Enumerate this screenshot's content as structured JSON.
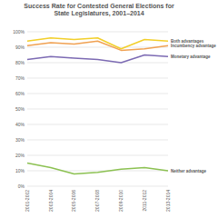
{
  "chart_data": {
    "type": "line",
    "title": "Success Rate for Contested General Elections for State Legislatures, 2001–2014",
    "categories": [
      "2001-2002",
      "2003-2004",
      "2005-2006",
      "2007-2008",
      "2009-2010",
      "2011-2012",
      "2013-2014"
    ],
    "series": [
      {
        "name": "Both advantages",
        "color": "#f2cf2a",
        "values": [
          94,
          96,
          95,
          96,
          89,
          95,
          94
        ]
      },
      {
        "name": "Incumbency advantage",
        "color": "#f0a152",
        "values": [
          91,
          93,
          92,
          94,
          88,
          89,
          91
        ]
      },
      {
        "name": "Monetary advantage",
        "color": "#7c6ab3",
        "values": [
          82,
          84,
          83,
          82,
          80,
          85,
          84
        ]
      },
      {
        "name": "Neither advantage",
        "color": "#8cc152",
        "values": [
          15,
          12,
          8,
          9,
          11,
          12,
          10
        ]
      }
    ],
    "ylim": [
      0,
      100
    ],
    "yticks": [
      {
        "value": 0,
        "label": "0%"
      },
      {
        "value": 10,
        "label": "10%"
      },
      {
        "value": 20,
        "label": "20%"
      },
      {
        "value": 30,
        "label": "30%"
      },
      {
        "value": 40,
        "label": "40%"
      },
      {
        "value": 50,
        "label": "50%"
      },
      {
        "value": 60,
        "label": "60%"
      },
      {
        "value": 70,
        "label": "70%"
      },
      {
        "value": 80,
        "label": "80%"
      },
      {
        "value": 90,
        "label": "90%"
      },
      {
        "value": 100,
        "label": "100%"
      }
    ],
    "grid": true
  }
}
